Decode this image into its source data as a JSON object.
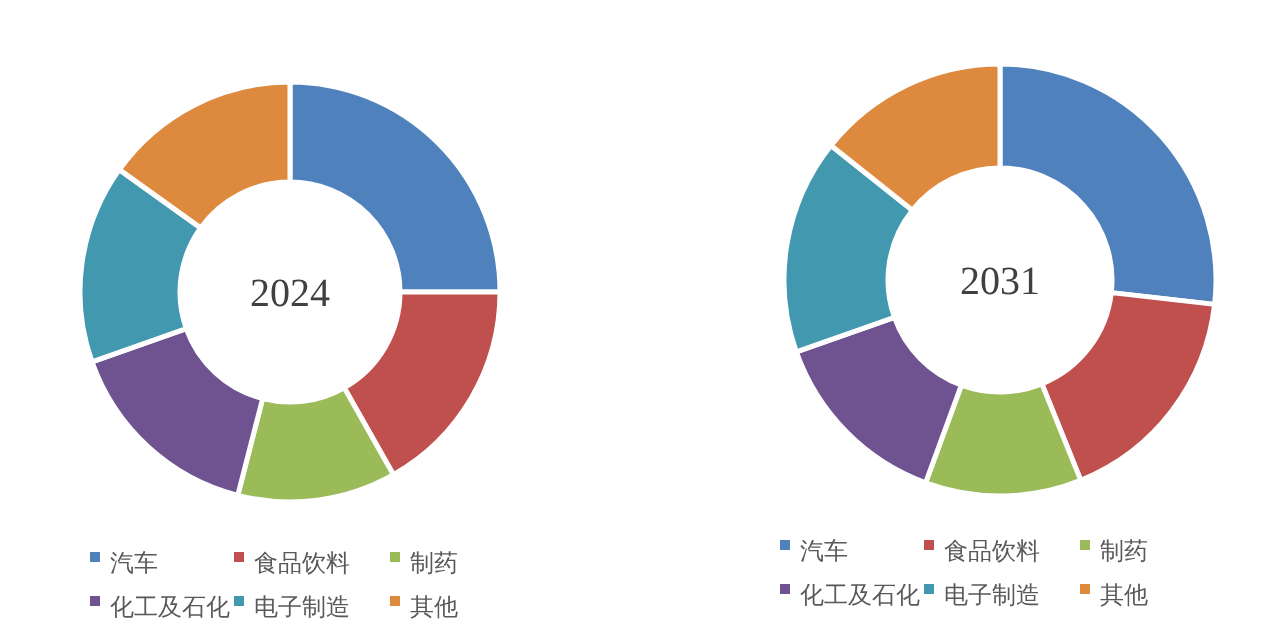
{
  "chart_data": [
    {
      "type": "donut",
      "title": "2024",
      "categories": [
        "汽车",
        "食品饮料",
        "制药",
        "化工及石化",
        "电子制造",
        "其他"
      ],
      "values": [
        25,
        16.8,
        12.2,
        15.6,
        15.3,
        15.1
      ],
      "colors": [
        "#4f81bd",
        "#c0504d",
        "#9bbb59",
        "#6f5391",
        "#4198af",
        "#dd8a3f"
      ],
      "legend": "bottom"
    },
    {
      "type": "donut",
      "title": "2031",
      "categories": [
        "汽车",
        "食品饮料",
        "制药",
        "化工及石化",
        "电子制造",
        "其他"
      ],
      "values": [
        26.8,
        17.1,
        11.7,
        14,
        16.1,
        14.3
      ],
      "colors": [
        "#4f81bd",
        "#c0504d",
        "#9bbb59",
        "#6f5391",
        "#4198af",
        "#dd8a3f"
      ],
      "legend": "bottom"
    }
  ]
}
